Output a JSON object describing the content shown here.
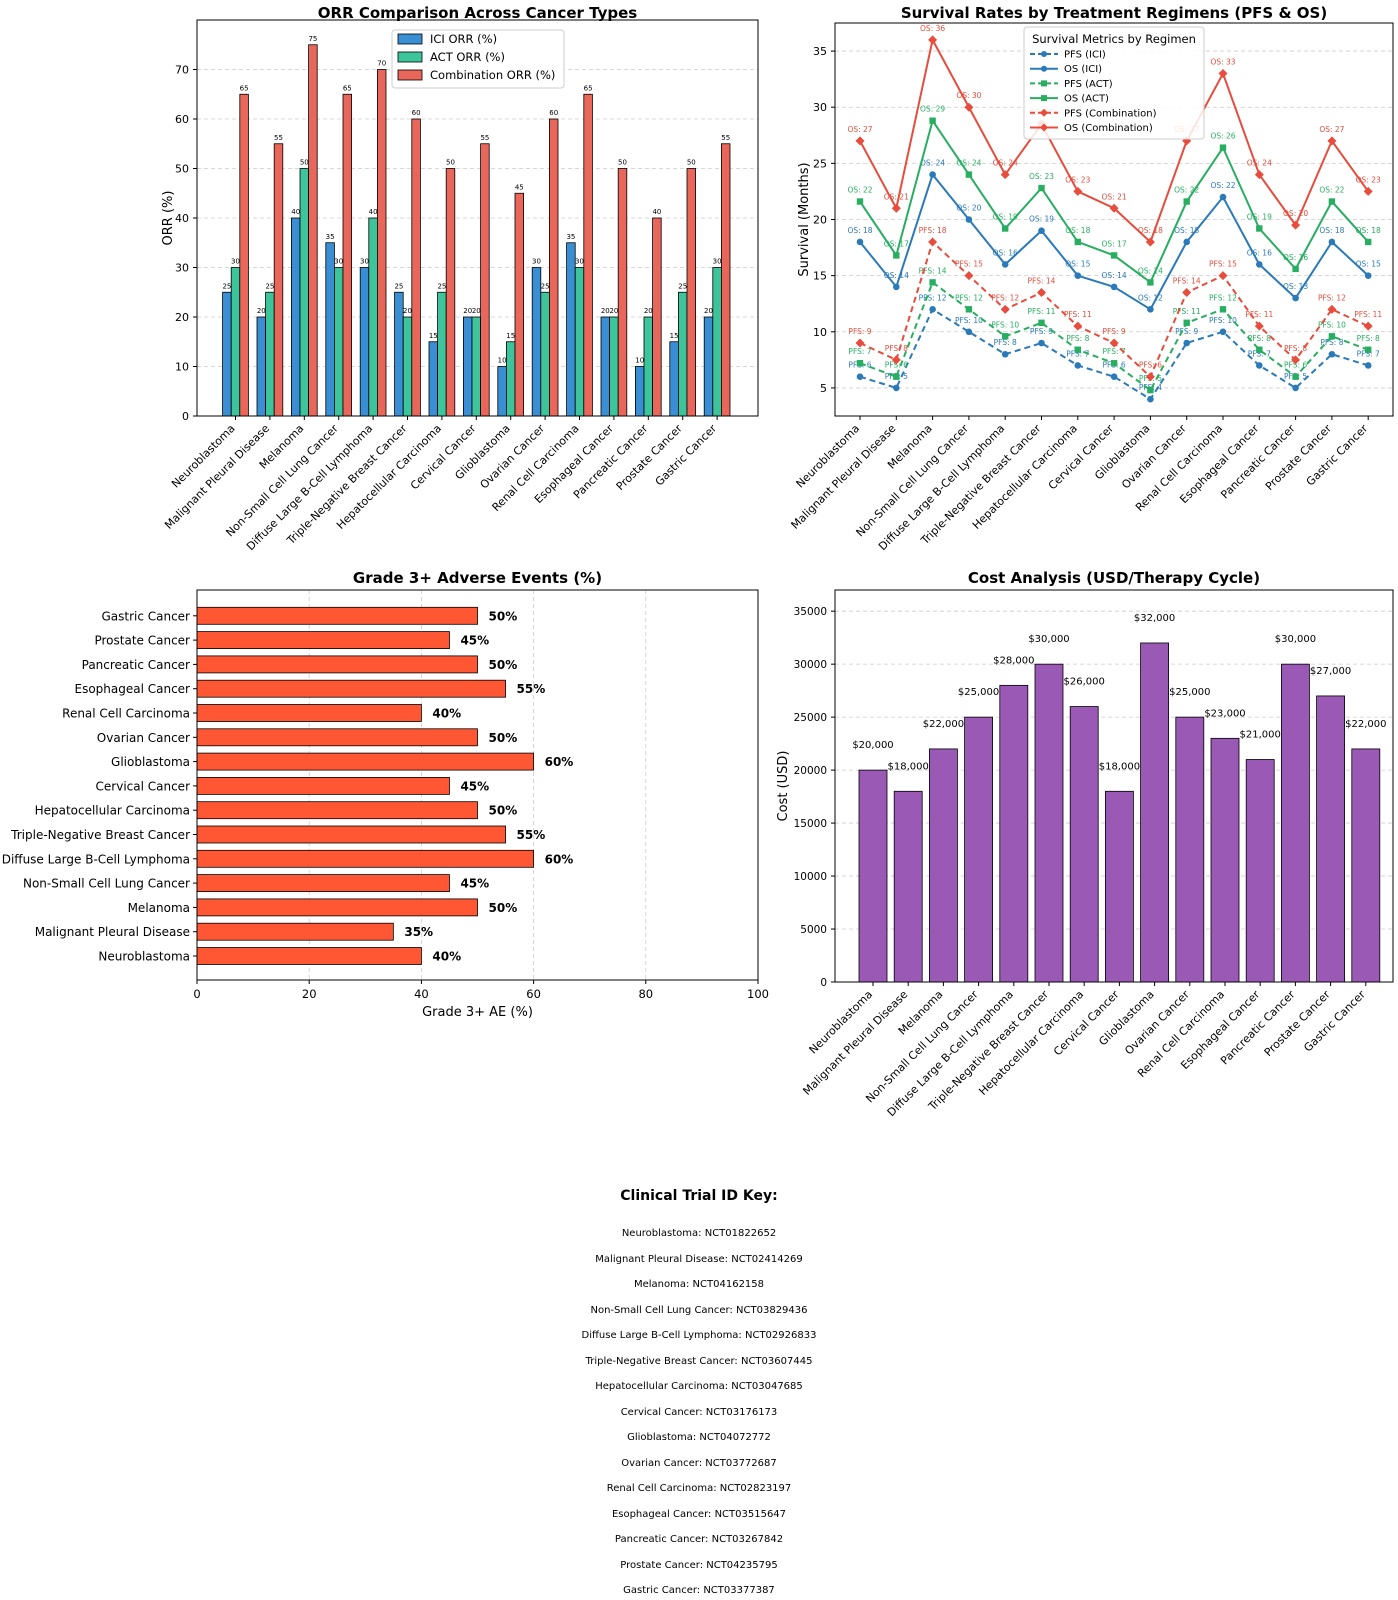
{
  "categories": [
    "Neuroblastoma",
    "Malignant Pleural Disease",
    "Melanoma",
    "Non-Small Cell Lung Cancer",
    "Diffuse Large B-Cell Lymphoma",
    "Triple-Negative Breast Cancer",
    "Hepatocellular Carcinoma",
    "Cervical Cancer",
    "Glioblastoma",
    "Ovarian Cancer",
    "Renal Cell Carcinoma",
    "Esophageal Cancer",
    "Pancreatic Cancer",
    "Prostate Cancer",
    "Gastric Cancer"
  ],
  "chart_data": [
    {
      "type": "bar",
      "title": "ORR Comparison Across Cancer Types",
      "xlabel": "",
      "ylabel": "ORR (%)",
      "ylim": [
        0,
        80
      ],
      "yticks": [
        0,
        10,
        20,
        30,
        40,
        50,
        60,
        70
      ],
      "grid": "y",
      "legend": "top-center",
      "series": [
        {
          "name": "ICI ORR (%)",
          "color": "#3a8fd4",
          "values": [
            25,
            20,
            40,
            35,
            30,
            25,
            15,
            20,
            10,
            30,
            35,
            20,
            10,
            15,
            20
          ]
        },
        {
          "name": "ACT ORR (%)",
          "color": "#3ec49a",
          "values": [
            30,
            25,
            50,
            30,
            40,
            20,
            25,
            20,
            15,
            25,
            30,
            20,
            20,
            25,
            30
          ]
        },
        {
          "name": "Combination ORR (%)",
          "color": "#e8675a",
          "values": [
            65,
            55,
            75,
            65,
            70,
            60,
            50,
            55,
            45,
            60,
            65,
            50,
            40,
            50,
            55
          ]
        }
      ]
    },
    {
      "type": "line",
      "title": "Survival Rates by Treatment Regimens (PFS & OS)",
      "xlabel": "",
      "ylabel": "Survival (Months)",
      "ylim": [
        2.5,
        37.5
      ],
      "yticks": [
        5,
        10,
        15,
        20,
        25,
        30,
        35
      ],
      "grid": "y",
      "legend_title": "Survival Metrics by Regimen",
      "legend": "top-center",
      "series": [
        {
          "name": "PFS (ICI)",
          "color": "#2a7ab9",
          "dashed": true,
          "marker": "circle",
          "label_prefix": "PFS: ",
          "values": [
            6,
            5,
            12,
            10,
            8,
            9,
            7,
            6,
            4,
            9,
            10,
            7,
            5,
            8,
            7
          ]
        },
        {
          "name": "OS (ICI)",
          "color": "#2a7ab9",
          "dashed": false,
          "marker": "circle",
          "label_prefix": "OS: ",
          "values": [
            18,
            14,
            24,
            20,
            16,
            19,
            15,
            14,
            12,
            18,
            22,
            16,
            13,
            18,
            15
          ]
        },
        {
          "name": "PFS (ACT)",
          "color": "#27ae60",
          "dashed": true,
          "marker": "square",
          "label_prefix": "PFS: ",
          "values": [
            7.2,
            6,
            14.4,
            12,
            9.6,
            10.8,
            8.4,
            7.2,
            4.8,
            10.8,
            12,
            8.4,
            6,
            9.6,
            8.4
          ]
        },
        {
          "name": "OS (ACT)",
          "color": "#27ae60",
          "dashed": false,
          "marker": "square",
          "label_prefix": "OS: ",
          "values": [
            21.6,
            16.8,
            28.8,
            24,
            19.2,
            22.8,
            18,
            16.8,
            14.4,
            21.6,
            26.4,
            19.2,
            15.6,
            21.6,
            18
          ]
        },
        {
          "name": "PFS (Combination)",
          "color": "#e74c3c",
          "dashed": true,
          "marker": "diamond",
          "label_prefix": "PFS: ",
          "values": [
            9,
            7.5,
            18,
            15,
            12,
            13.5,
            10.5,
            9,
            6,
            13.5,
            15,
            10.5,
            7.5,
            12,
            10.5
          ]
        },
        {
          "name": "OS (Combination)",
          "color": "#e74c3c",
          "dashed": false,
          "marker": "diamond",
          "label_prefix": "OS: ",
          "values": [
            27,
            21,
            36,
            30,
            24,
            28.5,
            22.5,
            21,
            18,
            27,
            33,
            24,
            19.5,
            27,
            22.5
          ]
        }
      ]
    },
    {
      "type": "bar",
      "orientation": "horizontal",
      "title": "Grade 3+ Adverse Events (%)",
      "xlabel": "Grade 3+ AE (%)",
      "ylabel": "",
      "xlim": [
        0,
        100
      ],
      "xticks": [
        0,
        20,
        40,
        60,
        80,
        100
      ],
      "grid": "x",
      "color": "#ff5733",
      "values": [
        40,
        35,
        50,
        45,
        60,
        55,
        50,
        45,
        60,
        50,
        40,
        55,
        50,
        45,
        50
      ]
    },
    {
      "type": "bar",
      "title": "Cost Analysis (USD/Therapy Cycle)",
      "xlabel": "",
      "ylabel": "Cost (USD)",
      "ylim": [
        0,
        37000
      ],
      "yticks": [
        0,
        5000,
        10000,
        15000,
        20000,
        25000,
        30000,
        35000
      ],
      "grid": "y",
      "color": "#9b59b6",
      "values": [
        20000,
        18000,
        22000,
        25000,
        28000,
        30000,
        26000,
        18000,
        32000,
        25000,
        23000,
        21000,
        30000,
        27000,
        22000
      ]
    }
  ],
  "trial_key": {
    "title": "Clinical Trial ID Key:",
    "lines": [
      "Neuroblastoma: NCT01822652",
      "Malignant Pleural Disease: NCT02414269",
      "Melanoma: NCT04162158",
      "Non-Small Cell Lung Cancer: NCT03829436",
      "Diffuse Large B-Cell Lymphoma: NCT02926833",
      "Triple-Negative Breast Cancer: NCT03607445",
      "Hepatocellular Carcinoma: NCT03047685",
      "Cervical Cancer: NCT03176173",
      "Glioblastoma: NCT04072772",
      "Ovarian Cancer: NCT03772687",
      "Renal Cell Carcinoma: NCT02823197",
      "Esophageal Cancer: NCT03515647",
      "Pancreatic Cancer: NCT03267842",
      "Prostate Cancer: NCT04235795",
      "Gastric Cancer: NCT03377387"
    ]
  }
}
